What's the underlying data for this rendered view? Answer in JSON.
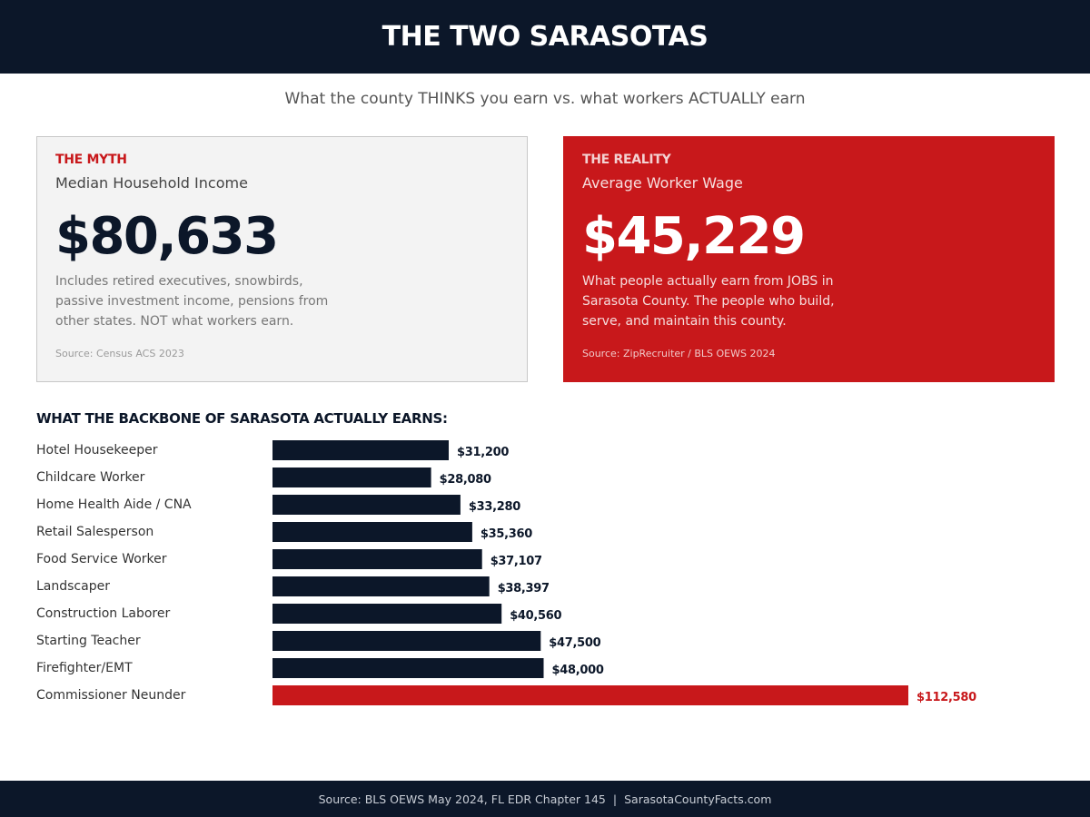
{
  "header": {
    "title": "THE TWO SARASOTAS"
  },
  "subtitle": "What the county THINKS you earn vs. what workers ACTUALLY earn",
  "myth": {
    "tag": "THE MYTH",
    "metric": "Median Household Income",
    "value": "$80,633",
    "description": "Includes retired executives, snowbirds, passive investment income, pensions from other states. NOT what workers earn.",
    "source": "Source: Census ACS 2023"
  },
  "reality": {
    "tag": "THE REALITY",
    "metric": "Average Worker Wage",
    "value": "$45,229",
    "description": "What people actually earn from JOBS in Sarasota County. The people who build, serve, and maintain this county.",
    "source": "Source: ZipRecruiter / BLS OEWS 2024"
  },
  "chart_data": {
    "type": "bar",
    "orientation": "horizontal",
    "title": "WHAT THE BACKBONE OF SARASOTA ACTUALLY EARNS:",
    "categories": [
      "Hotel Housekeeper",
      "Childcare Worker",
      "Home Health Aide / CNA",
      "Retail Salesperson",
      "Food Service Worker",
      "Landscaper",
      "Construction Laborer",
      "Starting Teacher",
      "Firefighter/EMT",
      "Commissioner Neunder"
    ],
    "values": [
      31200,
      28080,
      33280,
      35360,
      37107,
      38397,
      40560,
      47500,
      48000,
      112580
    ],
    "value_labels": [
      "$31,200",
      "$28,080",
      "$33,280",
      "$35,360",
      "$37,107",
      "$38,397",
      "$40,560",
      "$47,500",
      "$48,000",
      "$112,580"
    ],
    "bar_color": "#0c1729",
    "highlight_color": "#c8181b",
    "highlight_index": 9,
    "grid": false,
    "legend": "none"
  },
  "footer": {
    "source": "Source: BLS OEWS May 2024, FL EDR Chapter 145",
    "separator": "|",
    "site": "SarasotaCountyFacts.com"
  },
  "colors": {
    "navy": "#0c1729",
    "red": "#c8181b",
    "myth_bg": "#f3f3f3"
  }
}
